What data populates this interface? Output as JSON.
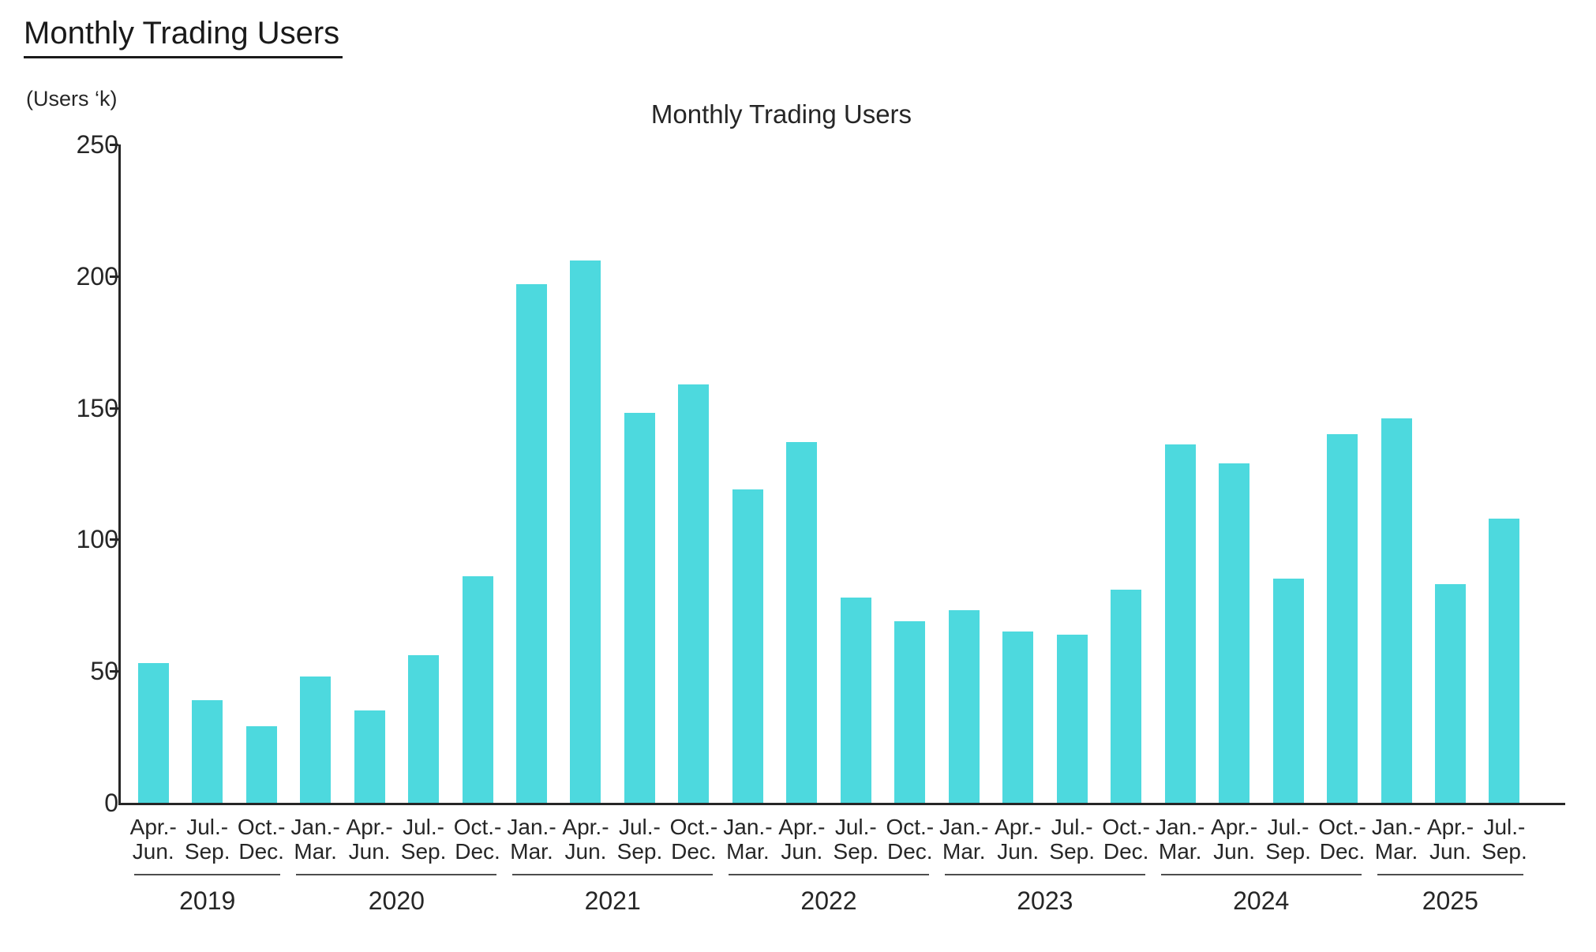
{
  "page": {
    "title": "Monthly Trading Users",
    "units_label": "(Users ‘k)"
  },
  "chart_data": {
    "type": "bar",
    "title": "Monthly Trading Users",
    "ylabel": "(Users ‘k)",
    "ylim": [
      0,
      250
    ],
    "yticks": [
      0,
      50,
      100,
      150,
      200,
      250
    ],
    "grid": false,
    "legend_position": "none",
    "bar_color": "#4DD9DE",
    "axis_color": "#262626",
    "year_line_color": "#4d4d4d",
    "groups": [
      {
        "year": "2019",
        "quarters": [
          "Apr.-\nJun.",
          "Jul.-\nSep.",
          "Oct.-\nDec."
        ],
        "values": [
          53,
          39,
          29
        ]
      },
      {
        "year": "2020",
        "quarters": [
          "Jan.-\nMar.",
          "Apr.-\nJun.",
          "Jul.-\nSep.",
          "Oct.-\nDec."
        ],
        "values": [
          48,
          35,
          56,
          86
        ]
      },
      {
        "year": "2021",
        "quarters": [
          "Jan.-\nMar.",
          "Apr.-\nJun.",
          "Jul.-\nSep.",
          "Oct.-\nDec."
        ],
        "values": [
          197,
          206,
          148,
          159
        ]
      },
      {
        "year": "2022",
        "quarters": [
          "Jan.-\nMar.",
          "Apr.-\nJun.",
          "Jul.-\nSep.",
          "Oct.-\nDec."
        ],
        "values": [
          119,
          137,
          78,
          69
        ]
      },
      {
        "year": "2023",
        "quarters": [
          "Jan.-\nMar.",
          "Apr.-\nJun.",
          "Jul.-\nSep.",
          "Oct.-\nDec."
        ],
        "values": [
          73,
          65,
          64,
          81
        ]
      },
      {
        "year": "2024",
        "quarters": [
          "Jan.-\nMar.",
          "Apr.-\nJun.",
          "Jul.-\nSep.",
          "Oct.-\nDec."
        ],
        "values": [
          136,
          129,
          85,
          140
        ]
      },
      {
        "year": "2025",
        "quarters": [
          "Jan.-\nMar.",
          "Apr.-\nJun.",
          "Jul.-\nSep."
        ],
        "values": [
          146,
          83,
          108
        ]
      }
    ]
  }
}
